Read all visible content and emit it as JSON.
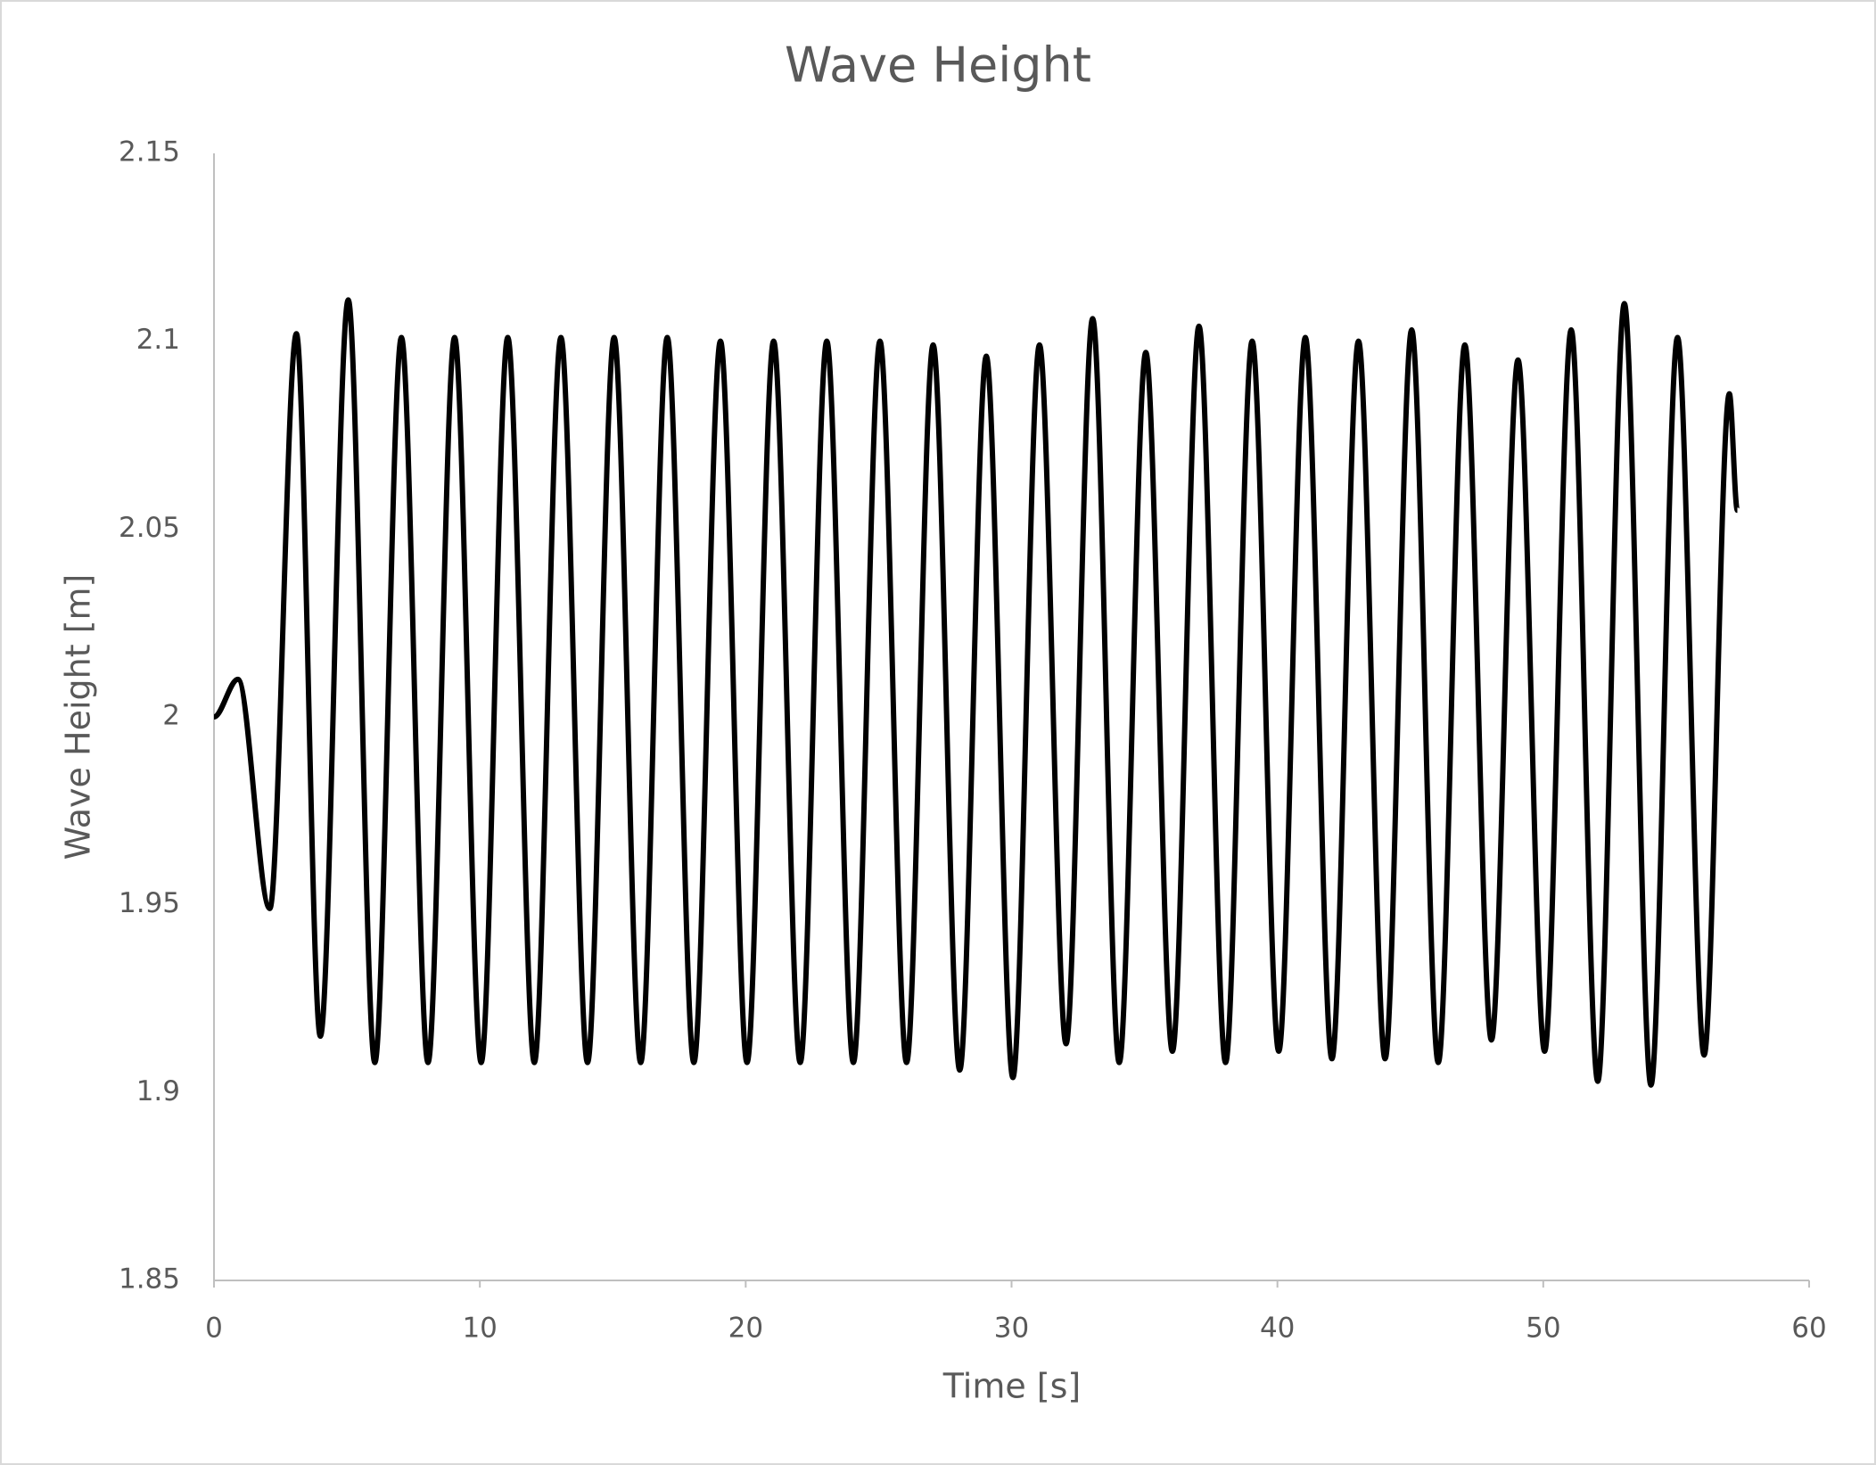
{
  "chart_data": {
    "type": "line",
    "title": "Wave Height",
    "x_label": "Time [s]",
    "y_label": "Wave Height [m]",
    "x": [
      0,
      0.9,
      2.1,
      3.1,
      4.0,
      5.05,
      6.05,
      7.05,
      8.05,
      9.05,
      10.05,
      11.05,
      12.05,
      13.05,
      14.05,
      15.05,
      16.05,
      17.05,
      18.05,
      19.05,
      20.05,
      21.05,
      22.05,
      23.05,
      24.05,
      25.05,
      26.05,
      27.05,
      28.05,
      29.05,
      30.05,
      31.05,
      32.05,
      33.05,
      34.05,
      35.05,
      36.05,
      37.05,
      38.05,
      39.05,
      40.05,
      41.05,
      42.05,
      43.05,
      44.05,
      45.05,
      46.05,
      47.05,
      48.05,
      49.05,
      50.05,
      51.05,
      52.05,
      53.05,
      54.05,
      55.05,
      56.05,
      57.0,
      57.3
    ],
    "series": [
      {
        "name": "Wave Height",
        "color": "#000000",
        "values": [
          2.0,
          2.01,
          1.949,
          2.102,
          1.915,
          2.111,
          1.908,
          2.101,
          1.908,
          2.101,
          1.908,
          2.101,
          1.908,
          2.101,
          1.908,
          2.101,
          1.908,
          2.101,
          1.908,
          2.1,
          1.908,
          2.1,
          1.908,
          2.1,
          1.908,
          2.1,
          1.908,
          2.099,
          1.906,
          2.096,
          1.904,
          2.099,
          1.913,
          2.106,
          1.908,
          2.097,
          1.911,
          2.104,
          1.908,
          2.1,
          1.911,
          2.101,
          1.909,
          2.1,
          1.909,
          2.103,
          1.908,
          2.099,
          1.914,
          2.095,
          1.911,
          2.103,
          1.903,
          2.11,
          1.902,
          2.101,
          1.91,
          2.086,
          2.055
        ]
      }
    ],
    "xlim": [
      0,
      60
    ],
    "xticks": [
      0,
      10,
      20,
      30,
      40,
      50,
      60
    ],
    "ylim": [
      1.85,
      2.15
    ],
    "yticks": [
      1.85,
      1.9,
      1.95,
      2,
      2.05,
      2.1,
      2.15
    ],
    "grid": false
  }
}
